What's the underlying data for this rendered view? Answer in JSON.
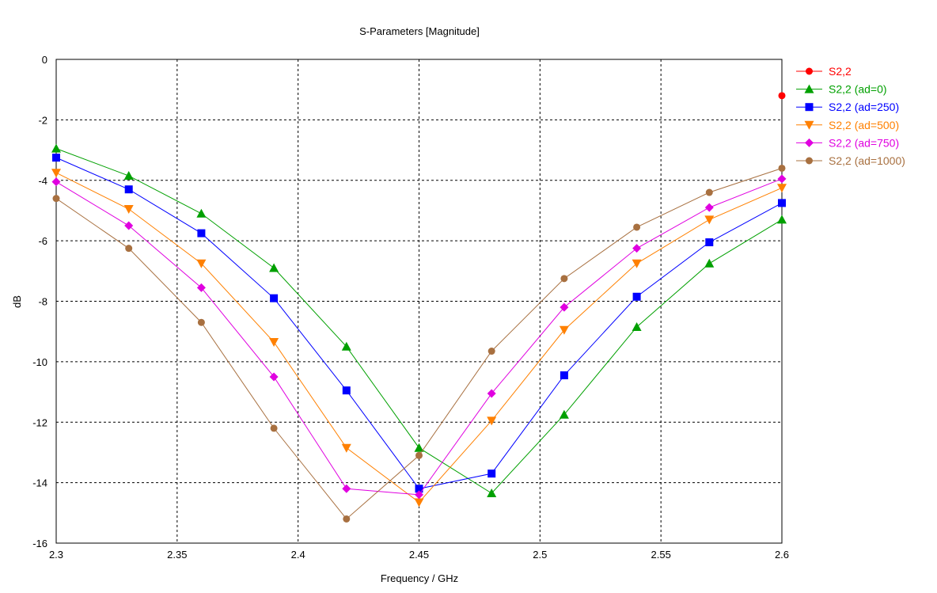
{
  "chart_data": {
    "type": "line",
    "title": "S-Parameters [Magnitude]",
    "xlabel": "Frequency / GHz",
    "ylabel": "dB",
    "xlim": [
      2.3,
      2.6
    ],
    "ylim": [
      -16,
      0
    ],
    "x_ticks": [
      "2.3",
      "2.35",
      "2.4",
      "2.45",
      "2.5",
      "2.55",
      "2.6"
    ],
    "y_ticks": [
      "0",
      "-2",
      "-4",
      "-6",
      "-8",
      "-10",
      "-12",
      "-14",
      "-16"
    ],
    "grid": true,
    "legend_position": "right",
    "series": [
      {
        "name": "S2,2",
        "color": "#ff0000",
        "marker": "circle",
        "x": [
          2.6
        ],
        "y": [
          -1.2
        ]
      },
      {
        "name": "S2,2 (ad=0)",
        "color": "#00a000",
        "marker": "triangle-up",
        "x": [
          2.3,
          2.33,
          2.36,
          2.39,
          2.42,
          2.45,
          2.48,
          2.51,
          2.54,
          2.57,
          2.6
        ],
        "y": [
          -2.95,
          -3.85,
          -5.1,
          -6.9,
          -9.5,
          -12.85,
          -14.35,
          -11.75,
          -8.85,
          -6.75,
          -5.3
        ]
      },
      {
        "name": "S2,2 (ad=250)",
        "color": "#0000ff",
        "marker": "square",
        "x": [
          2.3,
          2.33,
          2.36,
          2.39,
          2.42,
          2.45,
          2.48,
          2.51,
          2.54,
          2.57,
          2.6
        ],
        "y": [
          -3.25,
          -4.3,
          -5.75,
          -7.9,
          -10.95,
          -14.2,
          -13.7,
          -10.45,
          -7.85,
          -6.05,
          -4.75
        ]
      },
      {
        "name": "S2,2 (ad=500)",
        "color": "#ff8000",
        "marker": "triangle-down",
        "x": [
          2.3,
          2.33,
          2.36,
          2.39,
          2.42,
          2.45,
          2.48,
          2.51,
          2.54,
          2.57,
          2.6
        ],
        "y": [
          -3.75,
          -4.95,
          -6.75,
          -9.35,
          -12.85,
          -14.65,
          -11.95,
          -8.95,
          -6.75,
          -5.3,
          -4.25
        ]
      },
      {
        "name": "S2,2 (ad=750)",
        "color": "#e000e0",
        "marker": "diamond",
        "x": [
          2.3,
          2.33,
          2.36,
          2.39,
          2.42,
          2.45,
          2.48,
          2.51,
          2.54,
          2.57,
          2.6
        ],
        "y": [
          -4.05,
          -5.5,
          -7.55,
          -10.5,
          -14.2,
          -14.4,
          -11.05,
          -8.2,
          -6.25,
          -4.9,
          -3.95
        ]
      },
      {
        "name": "S2,2 (ad=1000)",
        "color": "#a87040",
        "marker": "circle",
        "x": [
          2.3,
          2.33,
          2.36,
          2.39,
          2.42,
          2.45,
          2.48,
          2.51,
          2.54,
          2.57,
          2.6
        ],
        "y": [
          -4.6,
          -6.25,
          -8.7,
          -12.2,
          -15.2,
          -13.1,
          -9.65,
          -7.25,
          -5.55,
          -4.4,
          -3.6
        ]
      }
    ]
  }
}
